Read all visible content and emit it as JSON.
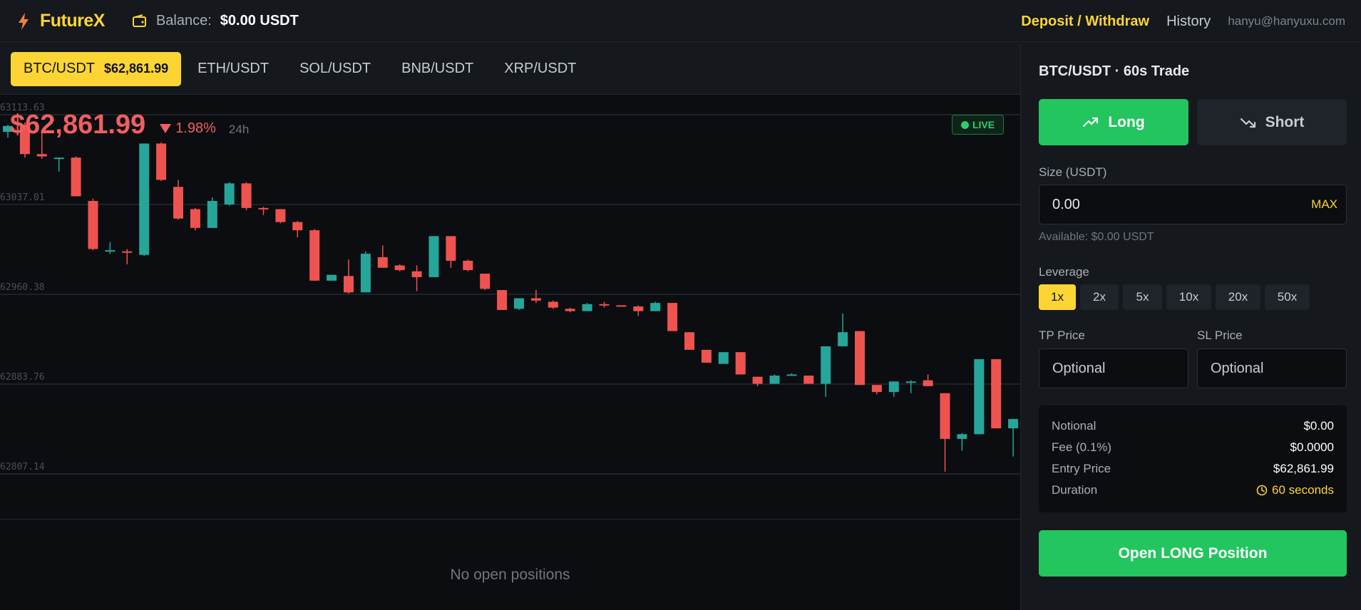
{
  "header": {
    "brand": "FutureX",
    "balance_label": "Balance:",
    "balance_value": "$0.00 USDT",
    "deposit_label": "Deposit / Withdraw",
    "history_label": "History",
    "user_email": "hanyu@hanyuxu.com"
  },
  "pairs": [
    {
      "label": "BTC/USDT",
      "price": "$62,861.99",
      "active": true
    },
    {
      "label": "ETH/USDT"
    },
    {
      "label": "SOL/USDT"
    },
    {
      "label": "BNB/USDT"
    },
    {
      "label": "XRP/USDT"
    }
  ],
  "ticker": {
    "price": "$62,861.99",
    "change": "1.98%",
    "period": "24h",
    "live_label": "LIVE"
  },
  "chart_data": {
    "type": "candlestick",
    "y_ticks": [
      "63113.63",
      "63037.01",
      "62960.38",
      "62883.76",
      "62807.14"
    ],
    "ylim": [
      62768.83,
      63130
    ],
    "colors": {
      "up": "#26a69a",
      "down": "#ef5350"
    },
    "candles": [
      {
        "o": 63099,
        "h": 63105,
        "l": 63094,
        "c": 63104
      },
      {
        "o": 63105,
        "h": 63107,
        "l": 63077,
        "c": 63080
      },
      {
        "o": 63080,
        "h": 63098,
        "l": 63076,
        "c": 63078
      },
      {
        "o": 63076,
        "h": 63077,
        "l": 63065,
        "c": 63077
      },
      {
        "o": 63077,
        "h": 63078,
        "l": 63044,
        "c": 63044
      },
      {
        "o": 63040,
        "h": 63042,
        "l": 62998,
        "c": 62999
      },
      {
        "o": 62998,
        "h": 63005,
        "l": 62995,
        "c": 62998
      },
      {
        "o": 62997,
        "h": 62999,
        "l": 62986,
        "c": 62996
      },
      {
        "o": 62994,
        "h": 63089,
        "l": 62993,
        "c": 63089
      },
      {
        "o": 63089,
        "h": 63090,
        "l": 63057,
        "c": 63058
      },
      {
        "o": 63052,
        "h": 63058,
        "l": 63024,
        "c": 63025
      },
      {
        "o": 63033,
        "h": 63034,
        "l": 63015,
        "c": 63017
      },
      {
        "o": 63017,
        "h": 63043,
        "l": 63017,
        "c": 63040
      },
      {
        "o": 63037,
        "h": 63056,
        "l": 63036,
        "c": 63055
      },
      {
        "o": 63055,
        "h": 63056,
        "l": 63032,
        "c": 63034
      },
      {
        "o": 63034,
        "h": 63035,
        "l": 63028,
        "c": 63033
      },
      {
        "o": 63033,
        "h": 63033,
        "l": 63021,
        "c": 63022
      },
      {
        "o": 63022,
        "h": 63023,
        "l": 63009,
        "c": 63015
      },
      {
        "o": 63015,
        "h": 63016,
        "l": 62972,
        "c": 62972
      },
      {
        "o": 62972,
        "h": 62977,
        "l": 62972,
        "c": 62977
      },
      {
        "o": 62976,
        "h": 62990,
        "l": 62961,
        "c": 62962
      },
      {
        "o": 62962,
        "h": 62997,
        "l": 62962,
        "c": 62995
      },
      {
        "o": 62992,
        "h": 63002,
        "l": 62983,
        "c": 62983
      },
      {
        "o": 62985,
        "h": 62986,
        "l": 62980,
        "c": 62981
      },
      {
        "o": 62980,
        "h": 62985,
        "l": 62963,
        "c": 62975
      },
      {
        "o": 62975,
        "h": 63010,
        "l": 62975,
        "c": 63010
      },
      {
        "o": 63010,
        "h": 63010,
        "l": 62983,
        "c": 62989
      },
      {
        "o": 62989,
        "h": 62990,
        "l": 62980,
        "c": 62981
      },
      {
        "o": 62978,
        "h": 62978,
        "l": 62964,
        "c": 62965
      },
      {
        "o": 62964,
        "h": 62964,
        "l": 62947,
        "c": 62947
      },
      {
        "o": 62948,
        "h": 62957,
        "l": 62947,
        "c": 62957
      },
      {
        "o": 62957,
        "h": 62964,
        "l": 62953,
        "c": 62955
      },
      {
        "o": 62954,
        "h": 62955,
        "l": 62948,
        "c": 62949
      },
      {
        "o": 62948,
        "h": 62949,
        "l": 62945,
        "c": 62946
      },
      {
        "o": 62946,
        "h": 62953,
        "l": 62946,
        "c": 62952
      },
      {
        "o": 62952,
        "h": 62954,
        "l": 62949,
        "c": 62951
      },
      {
        "o": 62951,
        "h": 62951,
        "l": 62950,
        "c": 62950
      },
      {
        "o": 62950,
        "h": 62951,
        "l": 62942,
        "c": 62946
      },
      {
        "o": 62946,
        "h": 62954,
        "l": 62946,
        "c": 62953
      },
      {
        "o": 62953,
        "h": 62953,
        "l": 62929,
        "c": 62929
      },
      {
        "o": 62928,
        "h": 62928,
        "l": 62913,
        "c": 62913
      },
      {
        "o": 62913,
        "h": 62913,
        "l": 62902,
        "c": 62902
      },
      {
        "o": 62901,
        "h": 62911,
        "l": 62901,
        "c": 62911
      },
      {
        "o": 62911,
        "h": 62911,
        "l": 62892,
        "c": 62892
      },
      {
        "o": 62890,
        "h": 62890,
        "l": 62882,
        "c": 62884
      },
      {
        "o": 62884,
        "h": 62892,
        "l": 62884,
        "c": 62891
      },
      {
        "o": 62892,
        "h": 62893,
        "l": 62892,
        "c": 62892
      },
      {
        "o": 62891,
        "h": 62891,
        "l": 62884,
        "c": 62884
      },
      {
        "o": 62884,
        "h": 62916,
        "l": 62873,
        "c": 62916
      },
      {
        "o": 62916,
        "h": 62944,
        "l": 62916,
        "c": 62928
      },
      {
        "o": 62929,
        "h": 62929,
        "l": 62883,
        "c": 62883
      },
      {
        "o": 62883,
        "h": 62883,
        "l": 62875,
        "c": 62877
      },
      {
        "o": 62877,
        "h": 62886,
        "l": 62873,
        "c": 62886
      },
      {
        "o": 62886,
        "h": 62887,
        "l": 62876,
        "c": 62886
      },
      {
        "o": 62887,
        "h": 62892,
        "l": 62882,
        "c": 62882
      },
      {
        "o": 62876,
        "h": 62876,
        "l": 62809,
        "c": 62837
      },
      {
        "o": 62837,
        "h": 62842,
        "l": 62827,
        "c": 62841
      },
      {
        "o": 62841,
        "h": 62905,
        "l": 62841,
        "c": 62905
      },
      {
        "o": 62905,
        "h": 62905,
        "l": 62846,
        "c": 62846
      },
      {
        "o": 62846,
        "h": 62854,
        "l": 62822,
        "c": 62854
      }
    ]
  },
  "positions": {
    "empty_text": "No open positions"
  },
  "trade": {
    "title": "BTC/USDT · 60s Trade",
    "long_label": "Long",
    "short_label": "Short",
    "size_label": "Size (USDT)",
    "size_value": "0.00",
    "max_label": "MAX",
    "available": "Available: $0.00 USDT",
    "leverage_label": "Leverage",
    "leverage": [
      {
        "label": "1x",
        "active": true
      },
      {
        "label": "2x"
      },
      {
        "label": "5x"
      },
      {
        "label": "10x"
      },
      {
        "label": "20x"
      },
      {
        "label": "50x"
      }
    ],
    "tp_label": "TP Price",
    "sl_label": "SL Price",
    "tp_placeholder": "Optional",
    "sl_placeholder": "Optional",
    "summary": {
      "notional_label": "Notional",
      "notional_value": "$0.00",
      "fee_label": "Fee (0.1%)",
      "fee_value": "$0.0000",
      "entry_label": "Entry Price",
      "entry_value": "$62,861.99",
      "duration_label": "Duration",
      "duration_value": "60 seconds"
    },
    "open_label": "Open LONG Position"
  },
  "colors": {
    "accent": "#fcd535",
    "up": "#22c55e",
    "down": "#f05f5f"
  }
}
